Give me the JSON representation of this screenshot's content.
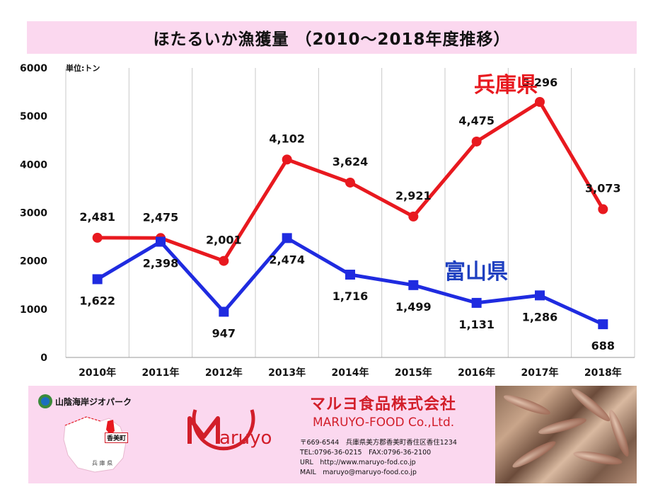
{
  "title": "ほたるいか漁獲量 （2010～2018年度推移）",
  "chart_data": {
    "type": "line",
    "title": "ほたるいか漁獲量 （2010～2018年度推移）",
    "unit_label": "単位:トン",
    "categories": [
      "2010年",
      "2011年",
      "2012年",
      "2013年",
      "2014年",
      "2015年",
      "2016年",
      "2017年",
      "2018年"
    ],
    "ylim": [
      0,
      6000
    ],
    "yticks": [
      "0",
      "1000",
      "2000",
      "3000",
      "4000",
      "5000",
      "6000"
    ],
    "grid": "vertical",
    "series": [
      {
        "name": "兵庫県",
        "color": "#e8191f",
        "values": [
          2481,
          2475,
          2001,
          4102,
          3624,
          2921,
          4475,
          5296,
          3073
        ],
        "labels": [
          "2,481",
          "2,475",
          "2,001",
          "4,102",
          "3,624",
          "2,921",
          "4,475",
          "5,296",
          "3,073"
        ]
      },
      {
        "name": "富山県",
        "color": "#1f2be0",
        "values": [
          1622,
          2398,
          947,
          2474,
          1716,
          1499,
          1131,
          1286,
          688
        ],
        "labels": [
          "1,622",
          "2,398",
          "947",
          "2,474",
          "1,716",
          "1,499",
          "1,131",
          "1,286",
          "688"
        ]
      }
    ]
  },
  "footer": {
    "geopark": "山陰海岸ジオパーク",
    "town": "香美町",
    "prefecture": "兵 庫 県",
    "logo_text": "Maruyo",
    "company_ja": "マルヨ食品株式会社",
    "company_en": "MARUYO-FOOD Co.,Ltd.",
    "address": "〒669-6544　兵庫県美方郡香美町香住区香住1234",
    "tel": "TEL:0796-36-0215　FAX:0796-36-2100",
    "url": "URL　http://www.maruyo-fod.co.jp",
    "mail": "MAIL　maruyo@maruyo-food.co.jp"
  },
  "colors": {
    "hyogo": "#e8191f",
    "toyama": "#1f2be0",
    "accent_pink": "#fbd8ef",
    "brand_red": "#d21e2a"
  }
}
